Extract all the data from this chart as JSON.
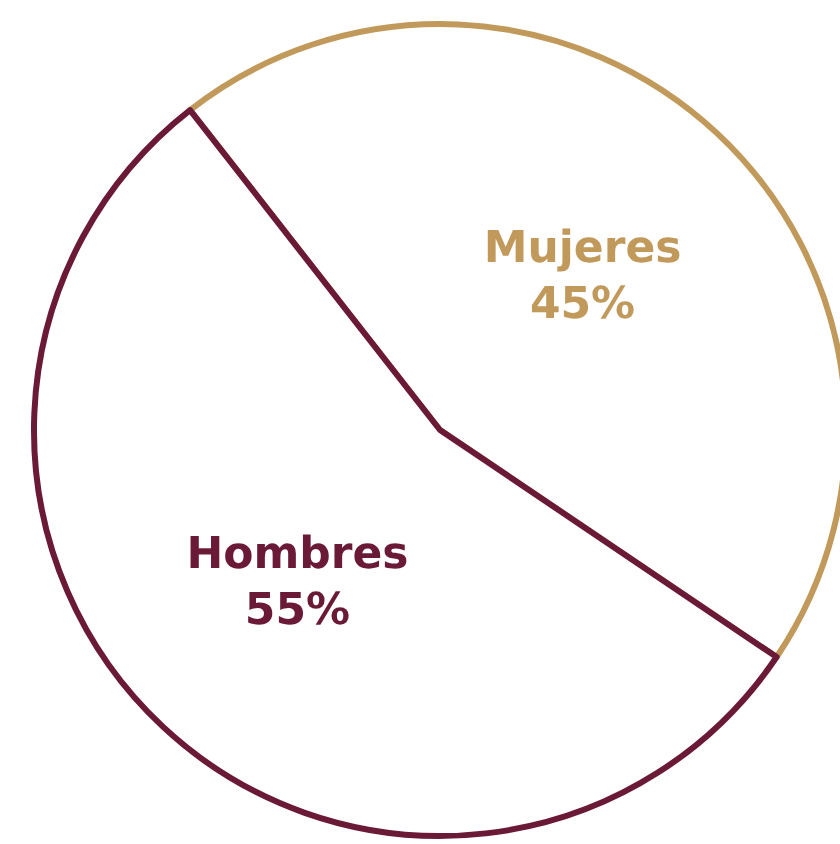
{
  "chart_data": {
    "type": "pie",
    "categories": [
      "Mujeres",
      "Hombres"
    ],
    "values": [
      45,
      55
    ],
    "colors": [
      "#c19a5b",
      "#6a1a36"
    ],
    "value_labels": [
      "45%",
      "55%"
    ],
    "legend": false
  }
}
